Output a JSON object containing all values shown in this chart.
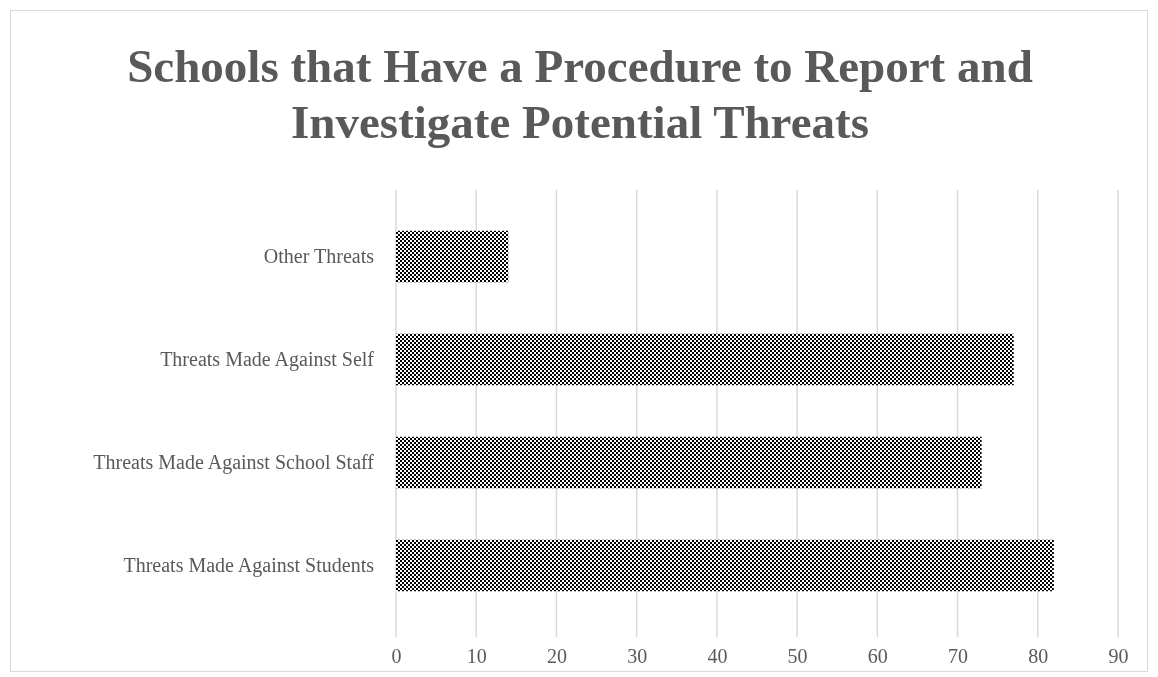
{
  "chart_data": {
    "type": "bar",
    "orientation": "horizontal",
    "title": "Schools that Have a Procedure to Report and Investigate Potential Threats",
    "categories": [
      "Other Threats",
      "Threats Made Against Self",
      "Threats Made Against School Staff",
      "Threats Made Against Students"
    ],
    "values": [
      14,
      77,
      73,
      82
    ],
    "color": "#000000",
    "xlim": [
      0,
      90
    ],
    "xticks": [
      0,
      10,
      20,
      30,
      40,
      50,
      60,
      70,
      80,
      90
    ],
    "grid": "x"
  }
}
